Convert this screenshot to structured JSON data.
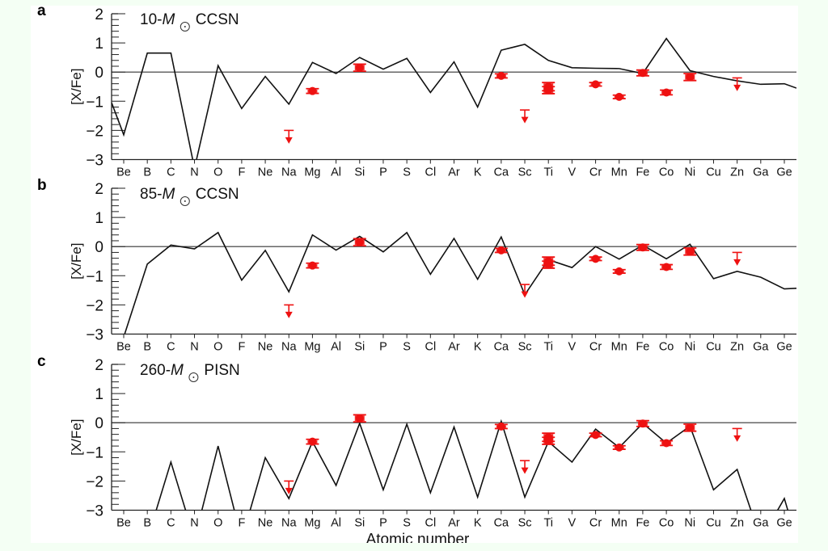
{
  "chart_data": {
    "type": "line",
    "xlabel": "Atomic number",
    "ylabel": "[X/Fe]",
    "ylim": [
      -3,
      2
    ],
    "yticks": [
      "2",
      "1",
      "0",
      "−1",
      "−2",
      "−3"
    ],
    "ytick_values": [
      2,
      1,
      0,
      -1,
      -2,
      -3
    ],
    "minor_tick_step": 0.2,
    "reference_line": 0,
    "categories": [
      "Be",
      "B",
      "C",
      "N",
      "O",
      "F",
      "Ne",
      "Na",
      "Mg",
      "Al",
      "Si",
      "P",
      "S",
      "Cl",
      "Ar",
      "K",
      "Ca",
      "Sc",
      "Ti",
      "V",
      "Cr",
      "Mn",
      "Fe",
      "Co",
      "Ni",
      "Cu",
      "Zn",
      "Ga",
      "Ge"
    ],
    "colors": {
      "model": "#111111",
      "observed": "#ee1111",
      "axis": "#222222"
    },
    "observed": [
      {
        "element": "Mg",
        "value": -0.65,
        "err": 0.08
      },
      {
        "element": "Si",
        "value": 0.15,
        "err": 0.12
      },
      {
        "element": "Ca",
        "value": -0.13,
        "err": 0.07
      },
      {
        "element": "Ti",
        "value": -0.5,
        "err": 0.14
      },
      {
        "element": "Ti",
        "value": -0.62,
        "err": 0.12
      },
      {
        "element": "Cr",
        "value": -0.42,
        "err": 0.06
      },
      {
        "element": "Mn",
        "value": -0.85,
        "err": 0.06
      },
      {
        "element": "Fe",
        "value": -0.03,
        "err": 0.1
      },
      {
        "element": "Co",
        "value": -0.7,
        "err": 0.08
      },
      {
        "element": "Ni",
        "value": -0.17,
        "err": 0.12
      }
    ],
    "upper_limits": [
      {
        "element": "Na",
        "value": -2.0
      },
      {
        "element": "Sc",
        "value": -1.3
      },
      {
        "element": "Zn",
        "value": -0.2
      }
    ],
    "panels": [
      {
        "letter": "a",
        "title_prefix": "10-",
        "title_M": "M",
        "title_suffix": "CCSN",
        "lead_in": -1.05,
        "tail_out": -0.55,
        "model": [
          -2.15,
          0.65,
          0.65,
          -3.3,
          0.22,
          -1.25,
          -0.15,
          -1.1,
          0.33,
          -0.05,
          0.5,
          0.1,
          0.47,
          -0.7,
          0.35,
          -1.2,
          0.75,
          0.95,
          0.4,
          0.15,
          0.13,
          0.12,
          -0.05,
          1.15,
          0.05,
          -0.15,
          -0.3,
          -0.42,
          -0.4
        ]
      },
      {
        "letter": "b",
        "title_prefix": "85-",
        "title_M": "M",
        "title_suffix": "CCSN",
        "lead_in": null,
        "tail_out": -1.43,
        "model": [
          -3.1,
          -0.6,
          0.05,
          -0.08,
          0.48,
          -1.15,
          -0.13,
          -1.55,
          0.4,
          -0.12,
          0.35,
          -0.18,
          0.48,
          -0.95,
          0.28,
          -1.12,
          0.33,
          -1.65,
          -0.45,
          -0.72,
          0.0,
          -0.43,
          0.05,
          -0.42,
          0.08,
          -1.1,
          -0.85,
          -1.05,
          -1.45
        ]
      },
      {
        "letter": "c",
        "title_prefix": "260-",
        "title_M": "M",
        "title_suffix": "PISN",
        "lead_in": null,
        "tail_out": -4,
        "model": [
          -4,
          -4,
          -1.35,
          -4,
          -0.8,
          -4,
          -1.2,
          -2.6,
          -0.65,
          -2.15,
          -0.02,
          -2.3,
          -0.05,
          -2.4,
          -0.15,
          -2.55,
          0.05,
          -2.55,
          -0.65,
          -1.35,
          -0.22,
          -0.85,
          -0.02,
          -0.7,
          -0.12,
          -2.3,
          -1.6,
          -4,
          -2.6
        ]
      }
    ]
  }
}
